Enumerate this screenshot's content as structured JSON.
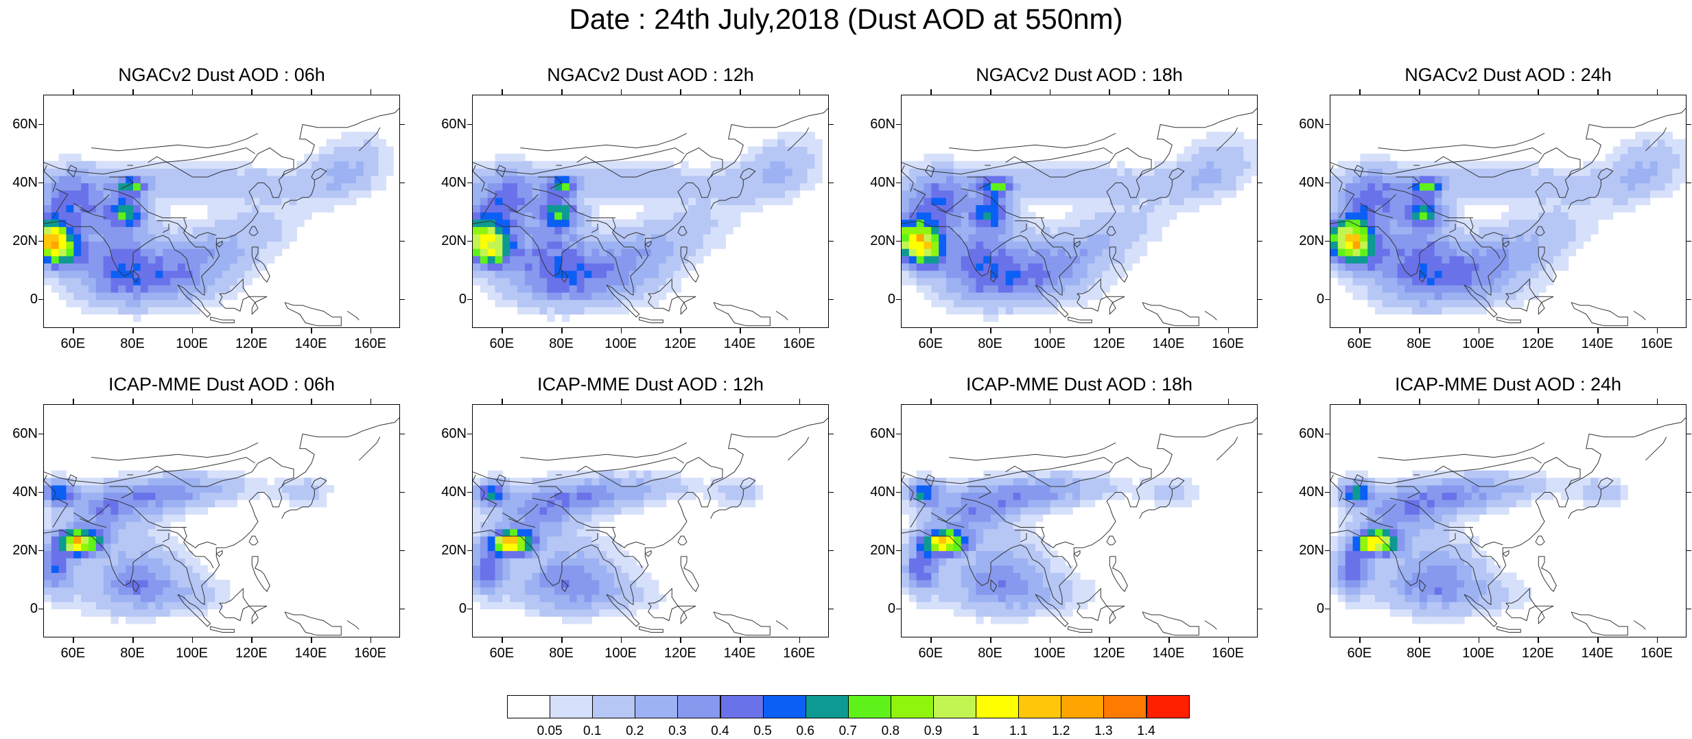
{
  "title": "Date : 24th July,2018 (Dust AOD at 550nm)",
  "lat_labels": [
    "60N",
    "40N",
    "20N",
    "0"
  ],
  "lon_labels": [
    "60E",
    "80E",
    "100E",
    "120E",
    "140E",
    "160E"
  ],
  "map_extent": {
    "lon": [
      50,
      170
    ],
    "lat": [
      -10,
      70
    ]
  },
  "panels": [
    {
      "title": "NGACv2 Dust AOD : 06h",
      "model": "NGACv2",
      "hour": "06h"
    },
    {
      "title": "NGACv2 Dust AOD : 12h",
      "model": "NGACv2",
      "hour": "12h"
    },
    {
      "title": "NGACv2 Dust AOD : 18h",
      "model": "NGACv2",
      "hour": "18h"
    },
    {
      "title": "NGACv2 Dust AOD : 24h",
      "model": "NGACv2",
      "hour": "24h"
    },
    {
      "title": "ICAP-MME Dust AOD : 06h",
      "model": "ICAP-MME",
      "hour": "06h"
    },
    {
      "title": "ICAP-MME Dust AOD : 12h",
      "model": "ICAP-MME",
      "hour": "12h"
    },
    {
      "title": "ICAP-MME Dust AOD : 18h",
      "model": "ICAP-MME",
      "hour": "18h"
    },
    {
      "title": "ICAP-MME Dust AOD : 24h",
      "model": "ICAP-MME",
      "hour": "24h"
    }
  ],
  "colorbar": {
    "labels": [
      "0.05",
      "0.1",
      "0.2",
      "0.3",
      "0.4",
      "0.5",
      "0.6",
      "0.7",
      "0.8",
      "0.9",
      "1",
      "1.1",
      "1.2",
      "1.3",
      "1.4"
    ],
    "colors": [
      "#ffffff",
      "#d6e0fa",
      "#b6c6f5",
      "#9cb2f2",
      "#8699ee",
      "#6a72ea",
      "#0c5ff5",
      "#0d9a92",
      "#5ff21a",
      "#90f40c",
      "#c2f552",
      "#ffff00",
      "#ffc60a",
      "#ffa400",
      "#ff7a00",
      "#ff2000"
    ]
  }
}
